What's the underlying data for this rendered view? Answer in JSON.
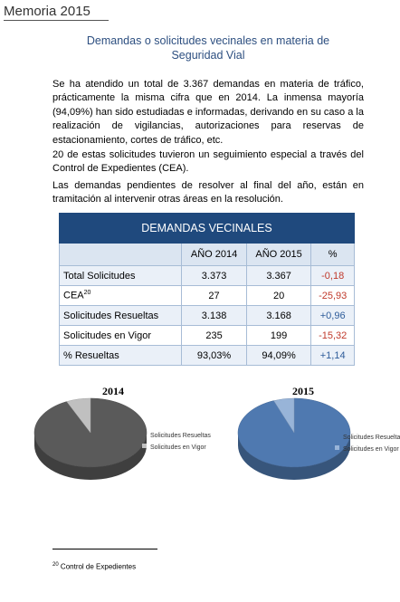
{
  "header": {
    "title": "Memoria 2015"
  },
  "title_lines": [
    "Demandas o solicitudes vecinales en materia de",
    "Seguridad Vial"
  ],
  "paragraphs": [
    "Se ha atendido un total de 3.367 demandas en materia de tráfico, prácticamente la misma cifra que en 2014. La inmensa mayoría (94,09%) han sido estudiadas e informadas, derivando en su caso a la realización de vigilancias, autorizaciones para reservas de estacionamiento, cortes de tráfico, etc.",
    "20 de estas solicitudes tuvieron un seguimiento especial a través del Control de Expedientes (CEA).",
    "Las demandas pendientes de resolver al final del año, están en tramitación al intervenir otras áreas en la  resolución."
  ],
  "table": {
    "title": "DEMANDAS VECINALES",
    "columns": [
      "AÑO 2014",
      "AÑO 2015",
      "%"
    ],
    "rows": [
      {
        "label": "Total Solicitudes",
        "cells": [
          "3.373",
          "3.367",
          "-0,18"
        ]
      },
      {
        "label": "CEA",
        "sup": "20",
        "cells": [
          "27",
          "20",
          "-25,93"
        ]
      },
      {
        "label": "Solicitudes Resueltas",
        "cells": [
          "3.138",
          "3.168",
          "+0,96"
        ]
      },
      {
        "label": "Solicitudes en Vigor",
        "cells": [
          "235",
          "199",
          "-15,32"
        ]
      },
      {
        "label": "% Resueltas",
        "cells": [
          "93,03%",
          "94,09%",
          "+1,14"
        ]
      }
    ]
  },
  "chart_data": [
    {
      "type": "pie",
      "title": "2014",
      "categories": [
        "Solicitudes Resueltas",
        "Solicitudes en Vigor"
      ],
      "values": [
        3138,
        235
      ],
      "colors": [
        "#5a5a5a",
        "#c0c0c0"
      ]
    },
    {
      "type": "pie",
      "title": "2015",
      "categories": [
        "Solicitudes Resueltas",
        "Solicitudes en Vigor"
      ],
      "values": [
        3168,
        199
      ],
      "colors": [
        "#4f79b0",
        "#98b4d8"
      ]
    }
  ],
  "footnote": {
    "number": "20",
    "text": "Control de Expedientes"
  }
}
